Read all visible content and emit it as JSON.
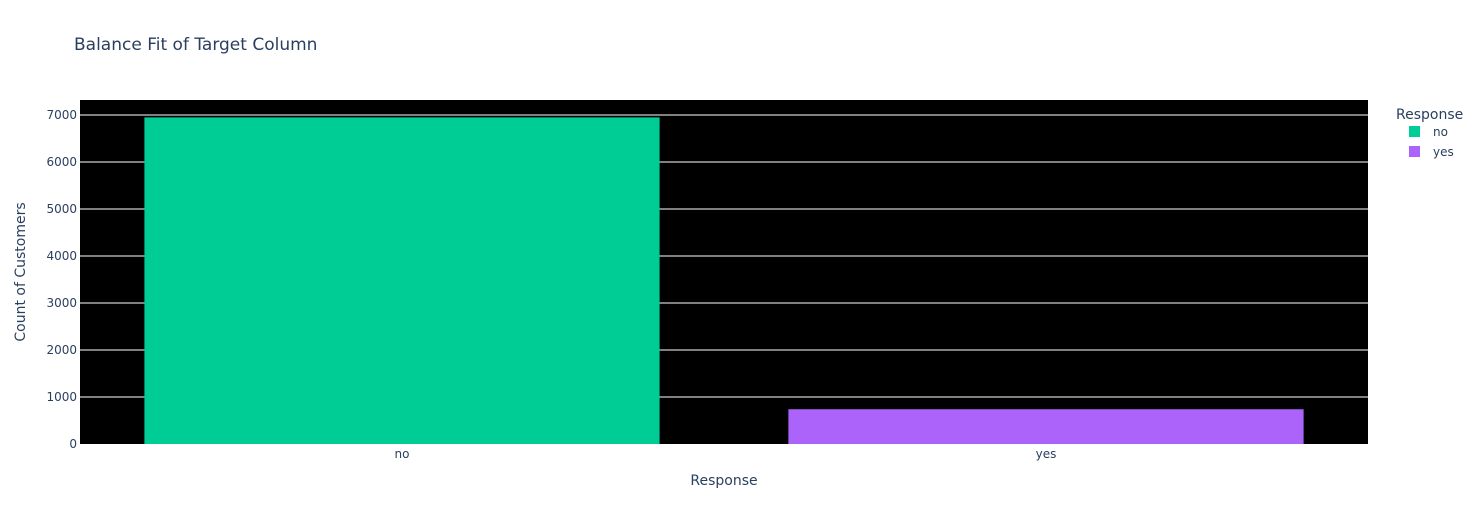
{
  "chart_data": {
    "type": "bar",
    "title": "Balance Fit of Target Column",
    "xlabel": "Response",
    "ylabel": "Count of Customers",
    "categories": [
      "no",
      "yes"
    ],
    "series": [
      {
        "name": "no",
        "category": "no",
        "value": 6950,
        "color": "#00cc96"
      },
      {
        "name": "yes",
        "category": "yes",
        "value": 740,
        "color": "#ab63fa"
      }
    ],
    "ylim": [
      0,
      7320
    ],
    "yticks": [
      0,
      1000,
      2000,
      3000,
      4000,
      5000,
      6000,
      7000
    ],
    "grid": true,
    "plot_background": "#000000",
    "gridline_color": "#ffffff",
    "legend": {
      "title": "Response",
      "placement": "top-right",
      "items": [
        "no",
        "yes"
      ]
    }
  }
}
